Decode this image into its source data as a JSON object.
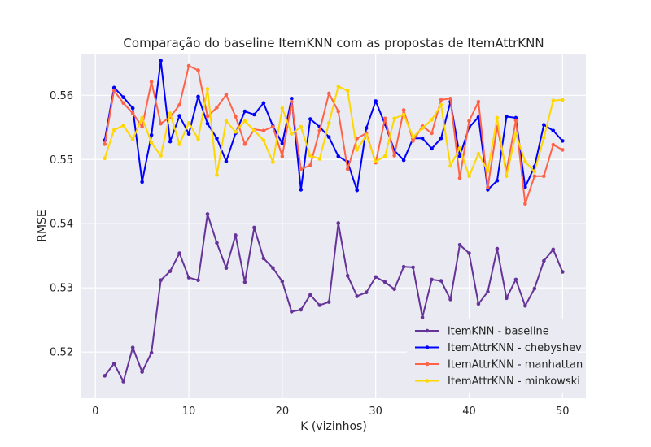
{
  "chart_data": {
    "type": "line",
    "title": "Comparação do baseline ItemKNN com as propostas de ItemAttrKNN",
    "xlabel": "K (vizinhos)",
    "ylabel": "RMSE",
    "xlim": [
      -1.5,
      52.5
    ],
    "ylim": [
      0.5128,
      0.5665
    ],
    "xticks": [
      0,
      10,
      20,
      30,
      40,
      50
    ],
    "xtick_labels": [
      "0",
      "10",
      "20",
      "30",
      "40",
      "50"
    ],
    "yticks": [
      0.52,
      0.53,
      0.54,
      0.55,
      0.56
    ],
    "ytick_labels": [
      "0.52",
      "0.53",
      "0.54",
      "0.55",
      "0.56"
    ],
    "grid": true,
    "legend_position": "lower-right",
    "x": [
      1,
      2,
      3,
      4,
      5,
      6,
      7,
      8,
      9,
      10,
      11,
      12,
      13,
      14,
      15,
      16,
      17,
      18,
      19,
      20,
      21,
      22,
      23,
      24,
      25,
      26,
      27,
      28,
      29,
      30,
      31,
      32,
      33,
      34,
      35,
      36,
      37,
      38,
      39,
      40,
      41,
      42,
      43,
      44,
      45,
      46,
      47,
      48,
      49,
      50
    ],
    "series": [
      {
        "name": "itemKNN - baseline",
        "color": "#663399",
        "values": [
          0.5163,
          0.5182,
          0.5154,
          0.5207,
          0.5169,
          0.5199,
          0.5312,
          0.5326,
          0.5354,
          0.5316,
          0.5312,
          0.5415,
          0.537,
          0.5331,
          0.5382,
          0.5309,
          0.5394,
          0.5346,
          0.5331,
          0.531,
          0.5263,
          0.5266,
          0.5289,
          0.5273,
          0.5278,
          0.5401,
          0.5319,
          0.5287,
          0.5293,
          0.5317,
          0.5309,
          0.5298,
          0.5333,
          0.5332,
          0.5254,
          0.5313,
          0.5311,
          0.5282,
          0.5367,
          0.5354,
          0.5275,
          0.5294,
          0.5361,
          0.5284,
          0.5313,
          0.5272,
          0.5299,
          0.5342,
          0.536,
          0.5325
        ]
      },
      {
        "name": "ItemAttrKNN - chebyshev",
        "color": "#0000ff",
        "values": [
          0.553,
          0.5612,
          0.5597,
          0.558,
          0.5465,
          0.5538,
          0.5654,
          0.5528,
          0.5568,
          0.554,
          0.5598,
          0.5556,
          0.5533,
          0.5497,
          0.5541,
          0.5575,
          0.557,
          0.5588,
          0.5552,
          0.5525,
          0.5595,
          0.5453,
          0.5563,
          0.5551,
          0.5535,
          0.5505,
          0.5496,
          0.5452,
          0.5549,
          0.5591,
          0.5555,
          0.5514,
          0.5499,
          0.5533,
          0.5533,
          0.5517,
          0.5533,
          0.559,
          0.5505,
          0.555,
          0.5566,
          0.5453,
          0.5467,
          0.5567,
          0.5565,
          0.5457,
          0.5489,
          0.5554,
          0.5545,
          0.5529
        ]
      },
      {
        "name": "ItemAttrKNN - manhattan",
        "color": "#ff6347",
        "values": [
          0.5524,
          0.5607,
          0.5588,
          0.5572,
          0.5551,
          0.5621,
          0.5556,
          0.5566,
          0.5585,
          0.5646,
          0.5639,
          0.5567,
          0.5581,
          0.5601,
          0.5567,
          0.5524,
          0.5547,
          0.5545,
          0.5551,
          0.5505,
          0.559,
          0.5485,
          0.5491,
          0.5545,
          0.5603,
          0.5575,
          0.5485,
          0.5533,
          0.5541,
          0.5495,
          0.5564,
          0.5506,
          0.5577,
          0.5529,
          0.5552,
          0.5541,
          0.5593,
          0.5595,
          0.5471,
          0.556,
          0.559,
          0.5457,
          0.5551,
          0.5482,
          0.5561,
          0.5431,
          0.5474,
          0.5474,
          0.5523,
          0.5515
        ]
      },
      {
        "name": "ItemAttrKNN - minkowski",
        "color": "#ffd700",
        "values": [
          0.5502,
          0.5546,
          0.5553,
          0.5531,
          0.5565,
          0.5526,
          0.5506,
          0.5572,
          0.5524,
          0.5557,
          0.5532,
          0.561,
          0.5476,
          0.556,
          0.5543,
          0.556,
          0.5545,
          0.553,
          0.5496,
          0.558,
          0.554,
          0.5551,
          0.5506,
          0.5501,
          0.5557,
          0.5614,
          0.5607,
          0.5515,
          0.5538,
          0.5497,
          0.5505,
          0.5564,
          0.557,
          0.5535,
          0.5549,
          0.5562,
          0.5585,
          0.549,
          0.5518,
          0.5474,
          0.5509,
          0.5482,
          0.5565,
          0.5474,
          0.554,
          0.5497,
          0.5481,
          0.5534,
          0.5592,
          0.5593
        ]
      }
    ]
  }
}
